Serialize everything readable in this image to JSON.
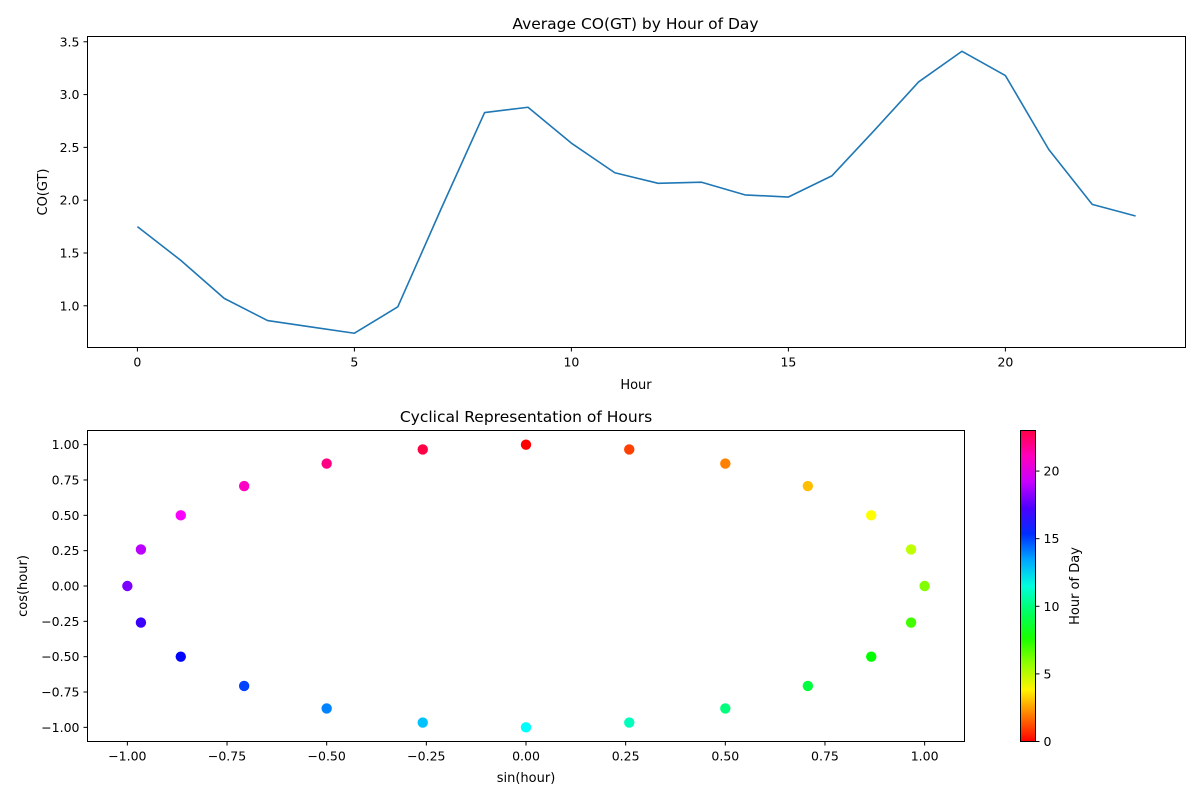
{
  "chart_data": [
    {
      "type": "line",
      "title": "Average CO(GT) by Hour of Day",
      "xlabel": "Hour",
      "ylabel": "CO(GT)",
      "xlim": [
        -1.15,
        24.15
      ],
      "ylim": [
        0.605,
        3.55
      ],
      "xticks": [
        0,
        5,
        10,
        15,
        20
      ],
      "yticks": [
        1.0,
        1.5,
        2.0,
        2.5,
        3.0,
        3.5
      ],
      "ytick_labels": [
        "1.0",
        "1.5",
        "2.0",
        "2.5",
        "3.0",
        "3.5"
      ],
      "grid": false,
      "line_color": "#1f77b4",
      "x": [
        0,
        1,
        2,
        3,
        4,
        5,
        6,
        7,
        8,
        9,
        10,
        11,
        12,
        13,
        14,
        15,
        16,
        17,
        18,
        19,
        20,
        21,
        22,
        23
      ],
      "values": [
        1.75,
        1.43,
        1.07,
        0.86,
        0.8,
        0.74,
        0.99,
        1.92,
        2.83,
        2.88,
        2.54,
        2.26,
        2.16,
        2.17,
        2.05,
        2.03,
        2.23,
        2.67,
        3.12,
        3.41,
        3.18,
        2.48,
        1.96,
        1.85
      ]
    },
    {
      "type": "scatter",
      "title": "Cyclical Representation of Hours",
      "xlabel": "sin(hour)",
      "ylabel": "cos(hour)",
      "xlim": [
        -1.1,
        1.1
      ],
      "ylim": [
        -1.1,
        1.1
      ],
      "xticks": [
        -1.0,
        -0.75,
        -0.5,
        -0.25,
        0.0,
        0.25,
        0.5,
        0.75,
        1.0
      ],
      "xtick_labels": [
        "−1.00",
        "−0.75",
        "−0.50",
        "−0.25",
        "0.00",
        "0.25",
        "0.50",
        "0.75",
        "1.00"
      ],
      "yticks": [
        -1.0,
        -0.75,
        -0.5,
        -0.25,
        0.0,
        0.25,
        0.5,
        0.75,
        1.0
      ],
      "ytick_labels": [
        "−1.00",
        "−0.75",
        "−0.50",
        "−0.25",
        "0.00",
        "0.25",
        "0.50",
        "0.75",
        "1.00"
      ],
      "grid": false,
      "colormap": "hsv",
      "hours": [
        0,
        1,
        2,
        3,
        4,
        5,
        6,
        7,
        8,
        9,
        10,
        11,
        12,
        13,
        14,
        15,
        16,
        17,
        18,
        19,
        20,
        21,
        22,
        23
      ],
      "points_x": [
        0.0,
        0.259,
        0.5,
        0.707,
        0.866,
        0.966,
        1.0,
        0.966,
        0.866,
        0.707,
        0.5,
        0.259,
        0.0,
        -0.259,
        -0.5,
        -0.707,
        -0.866,
        -0.966,
        -1.0,
        -0.966,
        -0.866,
        -0.707,
        -0.5,
        -0.259
      ],
      "points_y": [
        1.0,
        0.966,
        0.866,
        0.707,
        0.5,
        0.259,
        0.0,
        -0.259,
        -0.5,
        -0.707,
        -0.866,
        -0.966,
        -1.0,
        -0.966,
        -0.866,
        -0.707,
        -0.5,
        -0.259,
        0.0,
        0.259,
        0.5,
        0.707,
        0.866,
        0.966
      ],
      "colorbar": {
        "label": "Hour of Day",
        "range": [
          0,
          23
        ],
        "ticks": [
          0,
          5,
          10,
          15,
          20
        ]
      }
    }
  ]
}
